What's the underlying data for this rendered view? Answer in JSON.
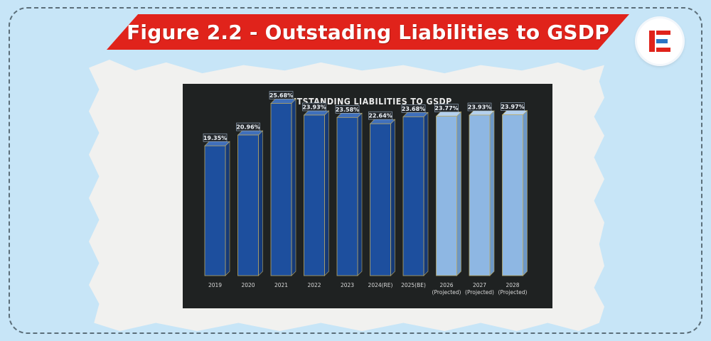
{
  "header": {
    "title": "Figure 2.2 - Outstading Liabilities to GSDP"
  },
  "logo": {
    "icon": "brand-e-logo-icon",
    "colors": [
      "#e0231b",
      "#2a74c4"
    ]
  },
  "colors": {
    "banner": "#e0231b",
    "background": "#c7e5f7",
    "chart_bg": "#1f2222",
    "actual_bar": "#1d4f9e",
    "projected_bar": "#8eb7e3"
  },
  "chart_data": {
    "type": "bar",
    "title": "OUTSTANDING LIABILITIES TO GSDP",
    "xlabel": "",
    "ylabel": "",
    "grid": false,
    "ylim": [
      0,
      27
    ],
    "categories": [
      "2019",
      "2020",
      "2021",
      "2022",
      "2023",
      "2024(RE)",
      "2025(BE)",
      "2026 (Projected)",
      "2027 (Projected)",
      "2028 (Projected)"
    ],
    "values": [
      19.35,
      20.96,
      25.68,
      23.93,
      23.58,
      22.64,
      23.68,
      23.77,
      23.93,
      23.97
    ],
    "data_labels": [
      "19.35%",
      "20.96%",
      "25.68%",
      "23.93%",
      "23.58%",
      "22.64%",
      "23.68%",
      "23.77%",
      "23.93%",
      "23.97%"
    ],
    "projected": [
      false,
      false,
      false,
      false,
      false,
      false,
      false,
      true,
      true,
      true
    ]
  }
}
